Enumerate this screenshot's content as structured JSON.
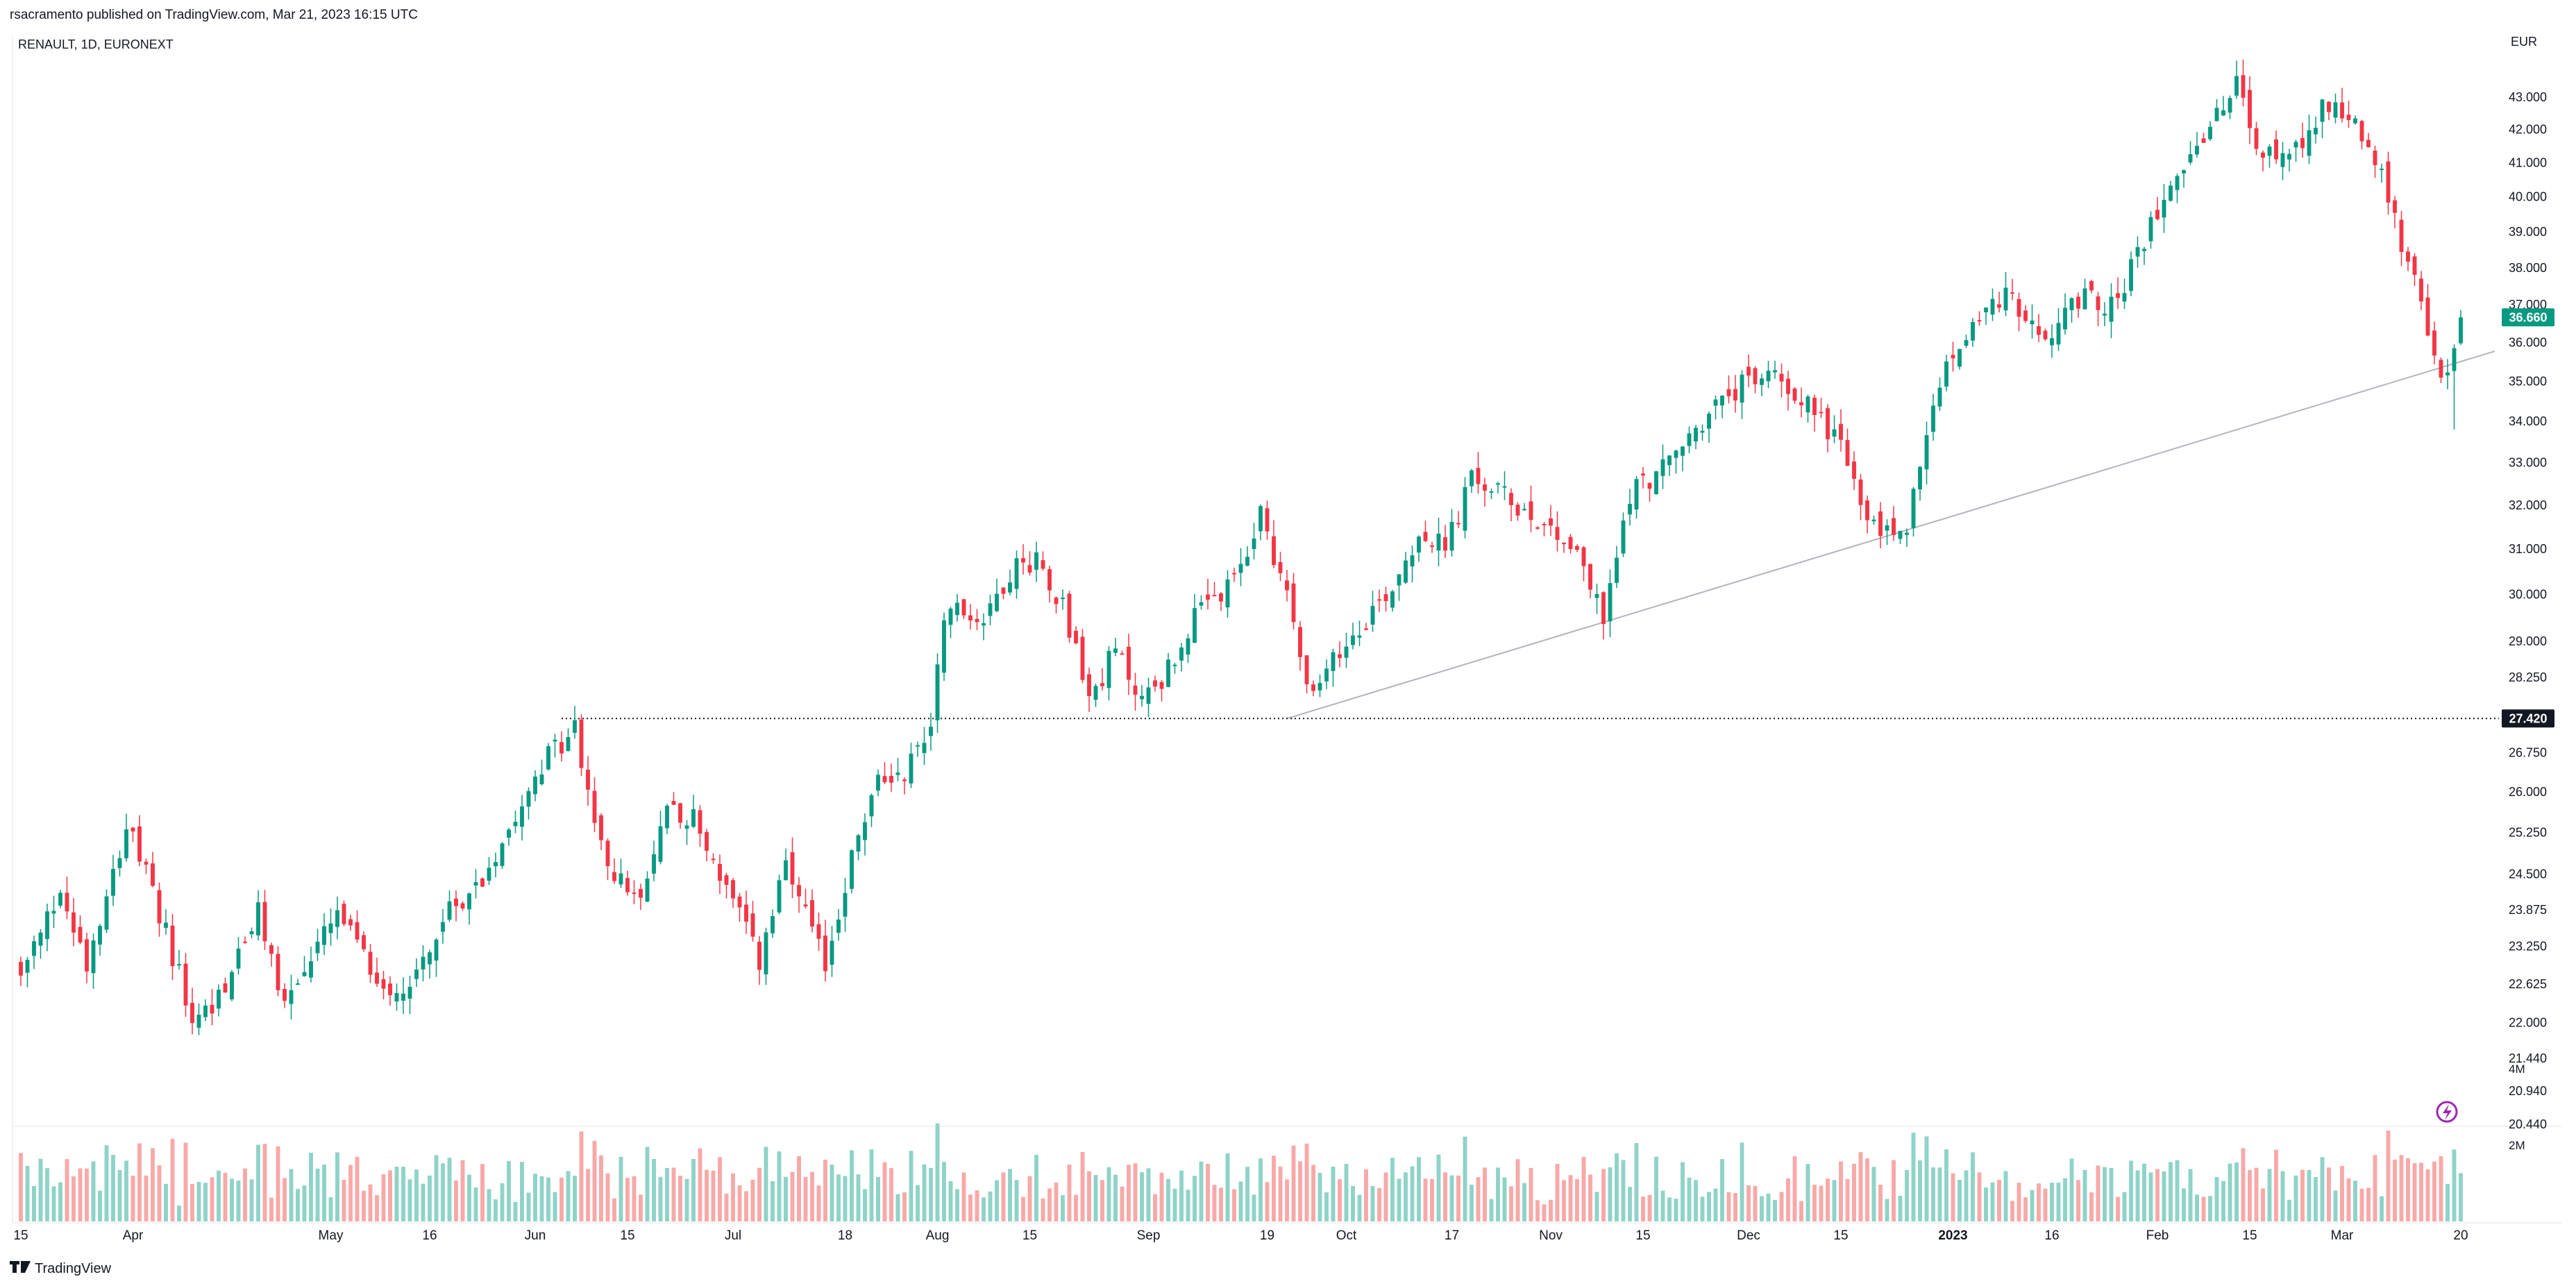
{
  "header": {
    "published": "rsacramento published on TradingView.com, Mar 21, 2023 16:15 UTC",
    "symbol": "RENAULT, 1D, EURONEXT",
    "currency": "EUR"
  },
  "footer": {
    "brand": "TradingView",
    "logo_icon": "tradingview-logo-icon"
  },
  "colors": {
    "up": "#089981",
    "down": "#f23645",
    "vol_up": "#8fd3c8",
    "vol_down": "#f7a9a7",
    "axis_text": "#131722",
    "trendline": "#b2b5be"
  },
  "chart_data": {
    "type": "candlestick",
    "symbol": "RENAULT",
    "interval": "1D",
    "exchange": "EURONEXT",
    "currency": "EUR",
    "y_scale": "log",
    "ylim": [
      20.44,
      44.2
    ],
    "y_ticks": [
      "43.000",
      "42.000",
      "41.000",
      "40.000",
      "39.000",
      "38.000",
      "37.000",
      "36.000",
      "35.000",
      "34.000",
      "33.000",
      "32.000",
      "31.000",
      "30.000",
      "29.000",
      "28.250",
      "27.420",
      "26.750",
      "26.000",
      "25.250",
      "24.500",
      "23.875",
      "23.250",
      "22.625",
      "22.000",
      "21.440",
      "20.940",
      "20.440"
    ],
    "x_ticks": [
      {
        "label": "15",
        "day": 0
      },
      {
        "label": "Apr",
        "day": 17
      },
      {
        "label": "May",
        "day": 47
      },
      {
        "label": "16",
        "day": 62
      },
      {
        "label": "Jun",
        "day": 78
      },
      {
        "label": "15",
        "day": 92
      },
      {
        "label": "Jul",
        "day": 108
      },
      {
        "label": "18",
        "day": 125
      },
      {
        "label": "Aug",
        "day": 139
      },
      {
        "label": "15",
        "day": 153
      },
      {
        "label": "Sep",
        "day": 171
      },
      {
        "label": "19",
        "day": 189
      },
      {
        "label": "Oct",
        "day": 201
      },
      {
        "label": "17",
        "day": 217
      },
      {
        "label": "Nov",
        "day": 232
      },
      {
        "label": "15",
        "day": 246
      },
      {
        "label": "Dec",
        "day": 262
      },
      {
        "label": "15",
        "day": 276
      },
      {
        "label": "2023",
        "day": 293
      },
      {
        "label": "16",
        "day": 308
      },
      {
        "label": "Feb",
        "day": 324
      },
      {
        "label": "15",
        "day": 338
      },
      {
        "label": "Mar",
        "day": 352
      },
      {
        "label": "20",
        "day": 370
      }
    ],
    "last_price": "36.660",
    "level_price": "27.420",
    "volume_ticks": [
      "4M",
      "2M"
    ],
    "anchors": [
      {
        "day": 0,
        "close": 22.7
      },
      {
        "day": 6,
        "close": 24.2
      },
      {
        "day": 10,
        "close": 23.0
      },
      {
        "day": 16,
        "close": 25.4
      },
      {
        "day": 22,
        "close": 23.5
      },
      {
        "day": 26,
        "close": 22.0
      },
      {
        "day": 30,
        "close": 22.4
      },
      {
        "day": 36,
        "close": 23.8
      },
      {
        "day": 40,
        "close": 22.3
      },
      {
        "day": 48,
        "close": 23.8
      },
      {
        "day": 54,
        "close": 22.7
      },
      {
        "day": 58,
        "close": 22.5
      },
      {
        "day": 66,
        "close": 24.0
      },
      {
        "day": 70,
        "close": 24.4
      },
      {
        "day": 78,
        "close": 26.4
      },
      {
        "day": 84,
        "close": 27.2
      },
      {
        "day": 88,
        "close": 24.9
      },
      {
        "day": 94,
        "close": 23.9
      },
      {
        "day": 98,
        "close": 25.8
      },
      {
        "day": 102,
        "close": 25.5
      },
      {
        "day": 108,
        "close": 24.0
      },
      {
        "day": 112,
        "close": 23.0
      },
      {
        "day": 116,
        "close": 24.6
      },
      {
        "day": 122,
        "close": 22.9
      },
      {
        "day": 126,
        "close": 24.8
      },
      {
        "day": 130,
        "close": 26.2
      },
      {
        "day": 134,
        "close": 26.4
      },
      {
        "day": 138,
        "close": 27.3
      },
      {
        "day": 140,
        "close": 29.7
      },
      {
        "day": 146,
        "close": 29.5
      },
      {
        "day": 150,
        "close": 30.5
      },
      {
        "day": 154,
        "close": 30.8
      },
      {
        "day": 158,
        "close": 29.8
      },
      {
        "day": 162,
        "close": 27.8
      },
      {
        "day": 166,
        "close": 28.8
      },
      {
        "day": 170,
        "close": 27.8
      },
      {
        "day": 174,
        "close": 28.4
      },
      {
        "day": 178,
        "close": 29.5
      },
      {
        "day": 184,
        "close": 30.2
      },
      {
        "day": 188,
        "close": 31.8
      },
      {
        "day": 192,
        "close": 30.0
      },
      {
        "day": 196,
        "close": 27.8
      },
      {
        "day": 200,
        "close": 28.8
      },
      {
        "day": 204,
        "close": 29.5
      },
      {
        "day": 208,
        "close": 30.2
      },
      {
        "day": 212,
        "close": 31.4
      },
      {
        "day": 216,
        "close": 31.0
      },
      {
        "day": 220,
        "close": 32.6
      },
      {
        "day": 224,
        "close": 32.3
      },
      {
        "day": 230,
        "close": 31.7
      },
      {
        "day": 236,
        "close": 31.0
      },
      {
        "day": 240,
        "close": 29.4
      },
      {
        "day": 244,
        "close": 32.3
      },
      {
        "day": 250,
        "close": 33.0
      },
      {
        "day": 256,
        "close": 34.2
      },
      {
        "day": 262,
        "close": 35.0
      },
      {
        "day": 266,
        "close": 35.2
      },
      {
        "day": 270,
        "close": 34.6
      },
      {
        "day": 276,
        "close": 33.5
      },
      {
        "day": 280,
        "close": 31.5
      },
      {
        "day": 286,
        "close": 31.4
      },
      {
        "day": 288,
        "close": 33.0
      },
      {
        "day": 292,
        "close": 35.4
      },
      {
        "day": 298,
        "close": 37.0
      },
      {
        "day": 302,
        "close": 37.2
      },
      {
        "day": 306,
        "close": 36.0
      },
      {
        "day": 312,
        "close": 37.2
      },
      {
        "day": 318,
        "close": 37.0
      },
      {
        "day": 322,
        "close": 38.8
      },
      {
        "day": 326,
        "close": 40.6
      },
      {
        "day": 332,
        "close": 42.0
      },
      {
        "day": 336,
        "close": 43.4
      },
      {
        "day": 340,
        "close": 41.0
      },
      {
        "day": 346,
        "close": 41.8
      },
      {
        "day": 350,
        "close": 42.9
      },
      {
        "day": 354,
        "close": 42.3
      },
      {
        "day": 358,
        "close": 40.5
      },
      {
        "day": 362,
        "close": 38.2
      },
      {
        "day": 366,
        "close": 35.5
      },
      {
        "day": 368,
        "close": 35.1
      },
      {
        "day": 370,
        "close": 36.66
      }
    ],
    "trendline": [
      {
        "day": 192,
        "price": 27.42
      },
      {
        "day": 372,
        "price": 35.7
      }
    ],
    "horizontal_level": {
      "from_day": 82,
      "price": 27.42
    }
  }
}
